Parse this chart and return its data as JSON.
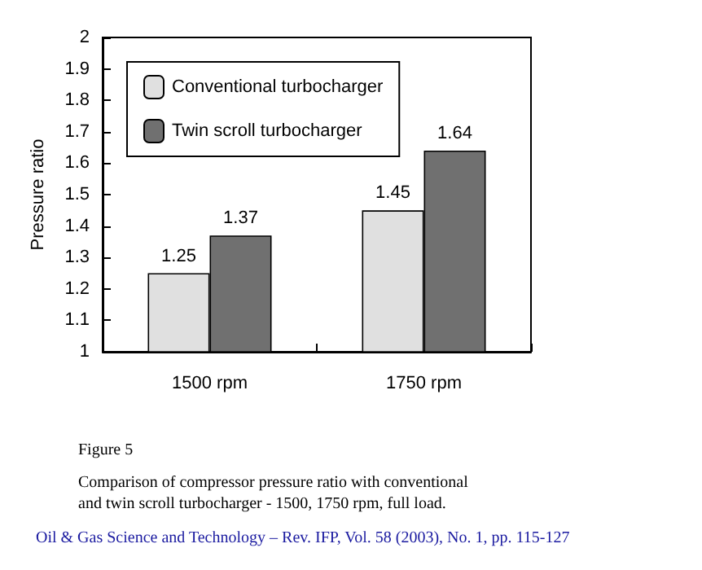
{
  "chart_data": {
    "type": "bar",
    "ylabel": "Pressure ratio",
    "categories": [
      "1500 rpm",
      "1750 rpm"
    ],
    "series": [
      {
        "name": "Conventional turbocharger",
        "color": "#e0e0e0",
        "values": [
          1.25,
          1.45
        ]
      },
      {
        "name": "Twin scroll turbocharger",
        "color": "#707070",
        "values": [
          1.37,
          1.64
        ]
      }
    ],
    "ylim": [
      1,
      2
    ],
    "yticks": [
      1,
      1.1,
      1.2,
      1.3,
      1.4,
      1.5,
      1.6,
      1.7,
      1.8,
      1.9,
      2
    ],
    "data_labels": true,
    "legend": "top left",
    "grid": false,
    "annotations": [
      "Figure 5",
      "Comparison of compressor pressure ratio with conventional\nand twin scroll turbocharger - 1500, 1750 rpm, full load.",
      "Oil & Gas Science and Technology – Rev. IFP, Vol. 58 (2003), No. 1, pp. 115-127"
    ]
  }
}
